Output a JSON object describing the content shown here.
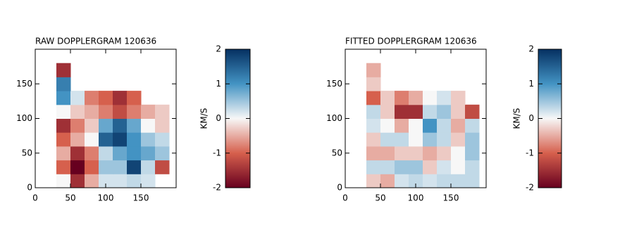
{
  "chart_data": [
    {
      "type": "heatmap",
      "title": "RAW DOPPLERGRAM 120636",
      "x": [
        40,
        60,
        80,
        100,
        120,
        140,
        160,
        180
      ],
      "y": [
        10,
        30,
        50,
        70,
        90,
        110,
        130,
        150,
        170
      ],
      "z": [
        [
          0,
          -1.5,
          -0.5,
          0.2,
          0.2,
          0.3,
          0.2,
          null
        ],
        [
          -1,
          -2,
          -1,
          0.5,
          0.5,
          1.8,
          0.3,
          -1.2
        ],
        [
          -0.5,
          -1.5,
          -0.8,
          0.3,
          0.8,
          1,
          0.8,
          0.5
        ],
        [
          -1,
          -0.5,
          0,
          1.5,
          1.8,
          1,
          0.5,
          0.3
        ],
        [
          -1.5,
          -0.8,
          -0.3,
          0.8,
          1.5,
          0.8,
          0,
          -0.3
        ],
        [
          0,
          -0.3,
          -0.5,
          -0.8,
          -1.2,
          -0.8,
          -0.5,
          -0.3
        ],
        [
          1,
          0.2,
          -0.8,
          -1,
          -1.5,
          -1,
          null,
          null
        ],
        [
          1.2,
          null,
          null,
          null,
          null,
          null,
          null,
          null
        ],
        [
          -1.5,
          null,
          null,
          null,
          null,
          null,
          null,
          null
        ]
      ],
      "xlim": [
        0,
        200
      ],
      "ylim": [
        0,
        200
      ],
      "xticks": [
        0,
        50,
        100,
        150
      ],
      "yticks": [
        0,
        50,
        100,
        150
      ],
      "zlim": [
        -2,
        2
      ],
      "zticks": [
        -2,
        -1,
        0,
        1,
        2
      ],
      "colorbar_label": "KM/S",
      "colormap": [
        "#67001f",
        "#d6604d",
        "#f7f7f7",
        "#4393c3",
        "#053061"
      ]
    },
    {
      "type": "heatmap",
      "title": "FITTED DOPPLERGRAM 120636",
      "x": [
        40,
        60,
        80,
        100,
        120,
        140,
        160,
        180
      ],
      "y": [
        10,
        30,
        50,
        70,
        90,
        110,
        130,
        150,
        170
      ],
      "z": [
        [
          -0.3,
          -0.5,
          0.2,
          0.3,
          0.2,
          0.3,
          0.3,
          0.3
        ],
        [
          0.3,
          0.3,
          0.5,
          0.5,
          -0.3,
          0.2,
          0,
          0.3
        ],
        [
          -0.5,
          -0.5,
          -0.3,
          -0.3,
          -0.5,
          -0.3,
          0,
          0.5
        ],
        [
          -0.3,
          0.3,
          0.3,
          0,
          0.5,
          0.3,
          -0.3,
          0.5
        ],
        [
          0.2,
          0,
          -0.5,
          0,
          1,
          0.3,
          -0.5,
          0.3
        ],
        [
          0.3,
          -0.3,
          -1.5,
          -1.5,
          0.3,
          0.5,
          -0.3,
          -1.2
        ],
        [
          -1,
          -0.3,
          -0.8,
          -0.5,
          0,
          0.2,
          -0.3,
          null
        ],
        [
          -0.3,
          null,
          null,
          null,
          null,
          null,
          null,
          null
        ],
        [
          -0.5,
          null,
          null,
          null,
          null,
          null,
          null,
          null
        ]
      ],
      "xlim": [
        0,
        200
      ],
      "ylim": [
        0,
        200
      ],
      "xticks": [
        0,
        50,
        100,
        150
      ],
      "yticks": [
        0,
        50,
        100,
        150
      ],
      "zlim": [
        -2,
        2
      ],
      "zticks": [
        -2,
        -1,
        0,
        1,
        2
      ],
      "colorbar_label": "KM/S",
      "colormap": [
        "#67001f",
        "#d6604d",
        "#f7f7f7",
        "#4393c3",
        "#053061"
      ]
    }
  ]
}
